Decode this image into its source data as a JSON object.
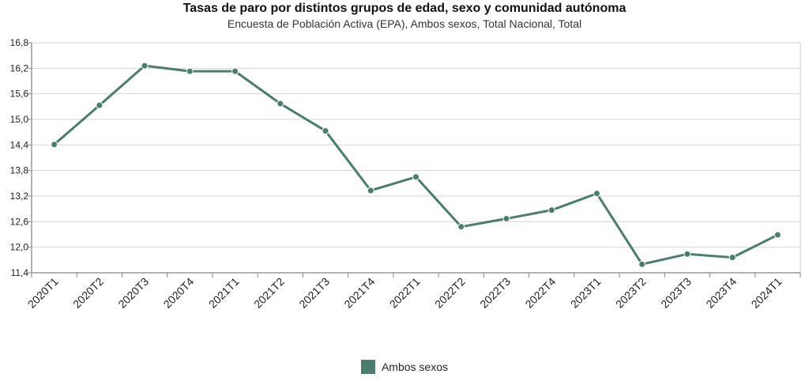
{
  "chart_data": {
    "type": "line",
    "title": "Tasas de paro por distintos grupos de edad, sexo y comunidad autónoma",
    "subtitle": "Encuesta de Población Activa (EPA), Ambos sexos, Total Nacional, Total",
    "categories": [
      "2020T1",
      "2020T2",
      "2020T3",
      "2020T4",
      "2021T1",
      "2021T2",
      "2021T3",
      "2021T4",
      "2022T1",
      "2022T2",
      "2022T3",
      "2022T4",
      "2023T1",
      "2023T2",
      "2023T3",
      "2023T4",
      "2024T1"
    ],
    "series": [
      {
        "name": "Ambos sexos",
        "color": "#4a7c70",
        "values": [
          14.41,
          15.33,
          16.26,
          16.13,
          16.13,
          15.37,
          14.73,
          13.33,
          13.65,
          12.48,
          12.67,
          12.87,
          13.26,
          11.6,
          11.84,
          11.76,
          12.29
        ]
      }
    ],
    "ylim": [
      11.4,
      16.8
    ],
    "yticks": [
      "11,4",
      "12,0",
      "12,6",
      "13,2",
      "13,8",
      "14,4",
      "15,0",
      "15,6",
      "16,2",
      "16,8"
    ],
    "grid": true,
    "legend_position": "bottom"
  }
}
